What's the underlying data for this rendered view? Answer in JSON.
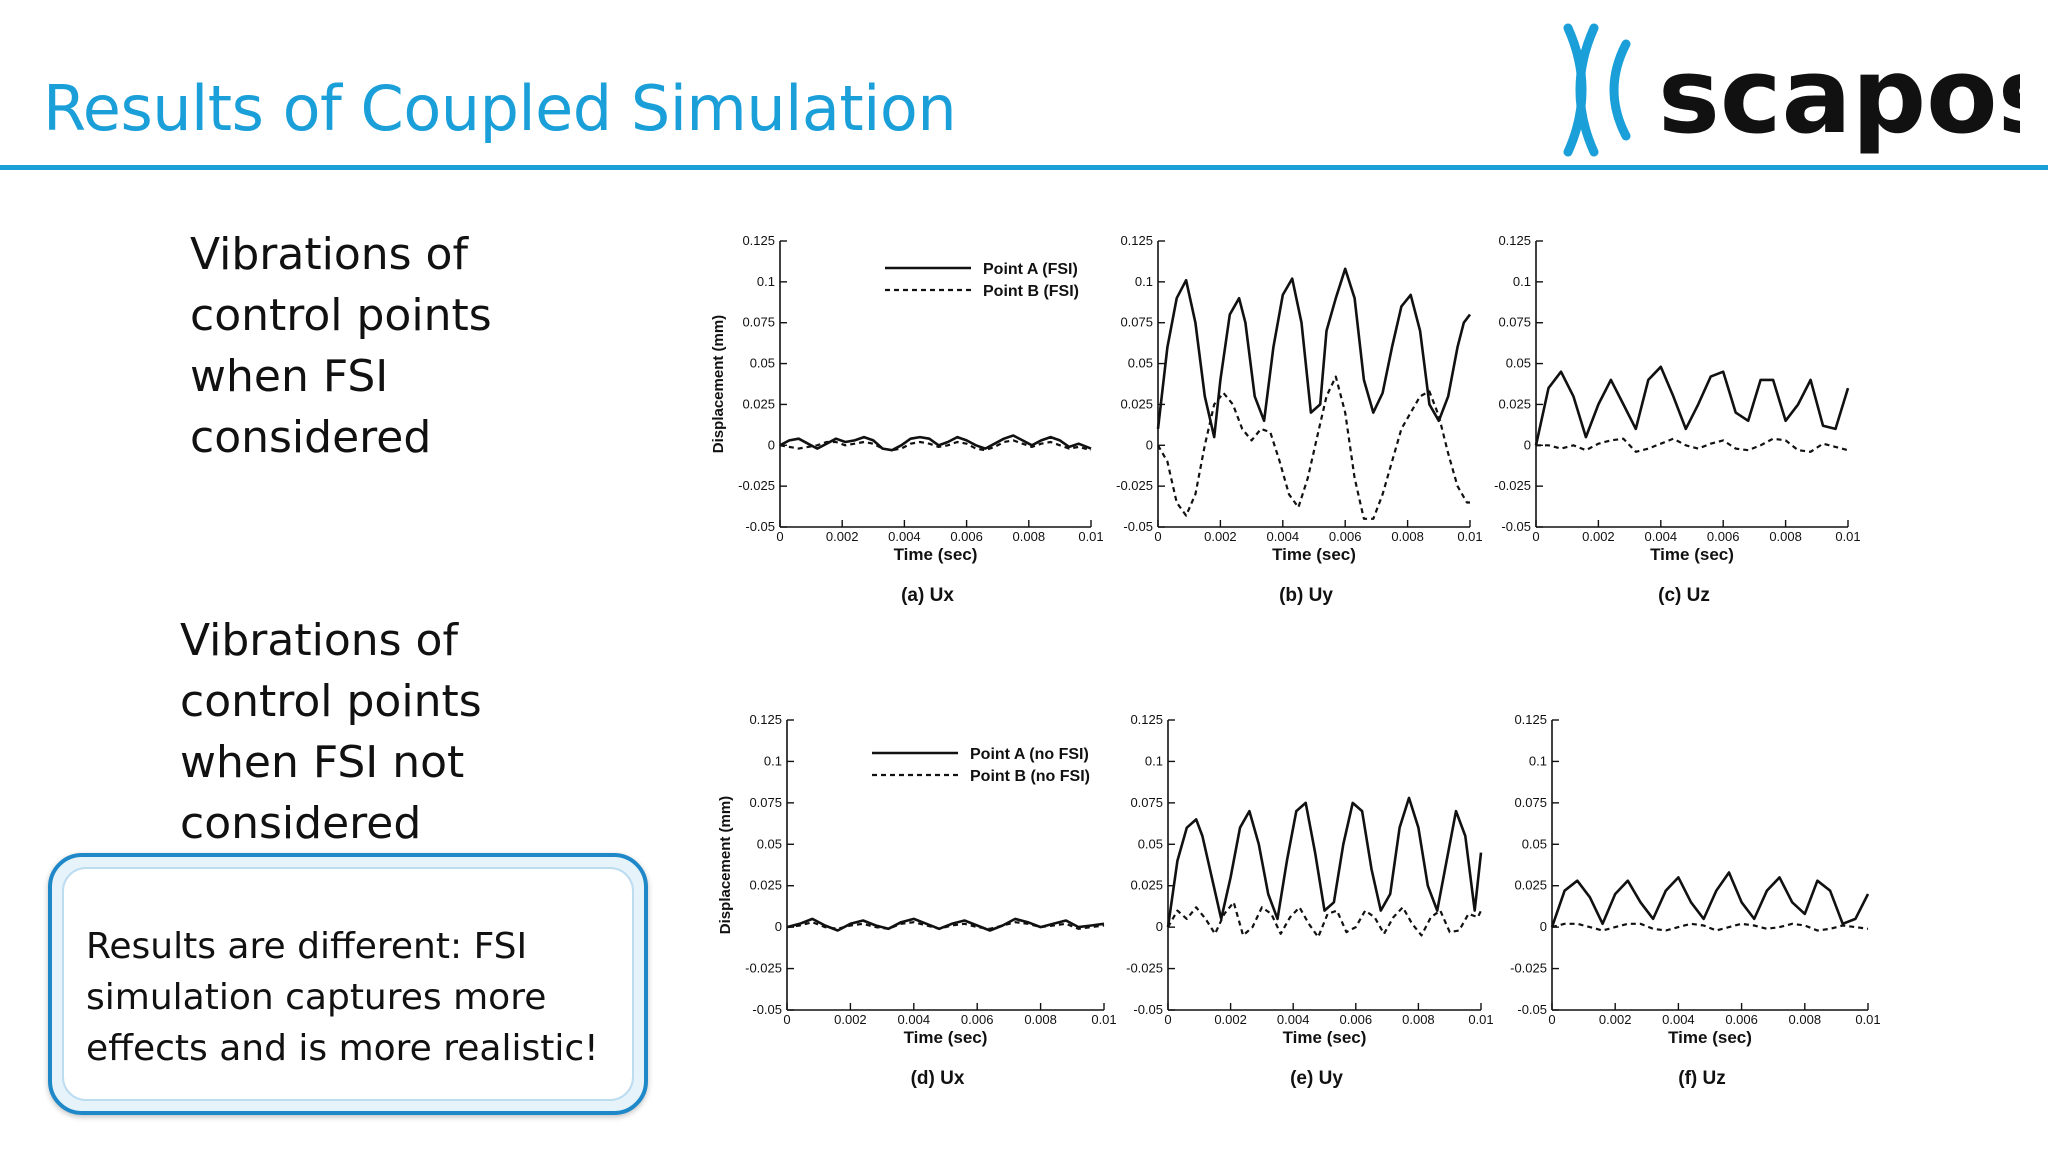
{
  "slide": {
    "title": "Results of Coupled Simulation",
    "logo_text": "scapos",
    "brand_color": "#1a9fd9"
  },
  "sections": {
    "fsi_lines": [
      "Vibrations of",
      "control points",
      "when FSI",
      "considered"
    ],
    "nofsi_lines": [
      "Vibrations of",
      "control points",
      "when FSI not",
      "considered"
    ]
  },
  "callout": {
    "lines": [
      "Results are different: FSI",
      "simulation captures more",
      "effects and is more realistic!"
    ]
  },
  "chart_data": [
    {
      "type": "line",
      "caption": "(a) Ux",
      "xlabel": "Time (sec)",
      "ylabel": "Displacement (mm)",
      "xlim": [
        0,
        0.01
      ],
      "ylim": [
        -0.05,
        0.125
      ],
      "xticks": [
        "0",
        "0.002",
        "0.004",
        "0.006",
        "0.008",
        "0.01"
      ],
      "yticks": [
        "0.125",
        "0.1",
        "0.075",
        "0.05",
        "0.025",
        "0",
        "-0.025",
        "-0.05"
      ],
      "legend": [
        "Point A (FSI)",
        "Point B (FSI)"
      ],
      "series": [
        {
          "name": "Point A (FSI)",
          "style": "solid",
          "x": [
            0,
            0.0003,
            0.0006,
            0.0009,
            0.0012,
            0.0015,
            0.0018,
            0.0021,
            0.0024,
            0.0027,
            0.003,
            0.0033,
            0.0036,
            0.0039,
            0.0042,
            0.0045,
            0.0048,
            0.0051,
            0.0054,
            0.0057,
            0.006,
            0.0063,
            0.0066,
            0.0069,
            0.0072,
            0.0075,
            0.0078,
            0.0081,
            0.0084,
            0.0087,
            0.009,
            0.0093,
            0.0096,
            0.01
          ],
          "y": [
            0,
            0.003,
            0.004,
            0.001,
            -0.002,
            0.001,
            0.004,
            0.002,
            0.003,
            0.005,
            0.003,
            -0.002,
            -0.003,
            0,
            0.004,
            0.005,
            0.004,
            0,
            0.002,
            0.005,
            0.003,
            0,
            -0.002,
            0.001,
            0.004,
            0.006,
            0.003,
            0,
            0.003,
            0.005,
            0.003,
            -0.001,
            0.001,
            -0.002
          ]
        },
        {
          "name": "Point B (FSI)",
          "style": "dashed",
          "x": [
            0,
            0.0003,
            0.0006,
            0.0009,
            0.0012,
            0.0015,
            0.0018,
            0.0021,
            0.0024,
            0.0027,
            0.003,
            0.0033,
            0.0036,
            0.0039,
            0.0042,
            0.0045,
            0.0048,
            0.0051,
            0.0054,
            0.0057,
            0.006,
            0.0063,
            0.0066,
            0.0069,
            0.0072,
            0.0075,
            0.0078,
            0.0081,
            0.0084,
            0.0087,
            0.009,
            0.0093,
            0.0096,
            0.01
          ],
          "y": [
            0,
            -0.001,
            -0.002,
            -0.001,
            0,
            0.002,
            0.002,
            0,
            0.001,
            0.002,
            0.001,
            -0.002,
            -0.003,
            -0.002,
            0.001,
            0.002,
            0.001,
            -0.001,
            0,
            0.002,
            0.001,
            -0.002,
            -0.003,
            -0.001,
            0.002,
            0.003,
            0.001,
            -0.001,
            0.001,
            0.002,
            0,
            -0.002,
            -0.001,
            -0.003
          ]
        }
      ]
    },
    {
      "type": "line",
      "caption": "(b) Uy",
      "xlabel": "Time (sec)",
      "ylabel": "",
      "xlim": [
        0,
        0.01
      ],
      "ylim": [
        -0.05,
        0.125
      ],
      "xticks": [
        "0",
        "0.002",
        "0.004",
        "0.006",
        "0.008",
        "0.01"
      ],
      "yticks": [
        "0.125",
        "0.1",
        "0.075",
        "0.05",
        "0.025",
        "0",
        "-0.025",
        "-0.05"
      ],
      "legend": [],
      "series": [
        {
          "name": "Point A (FSI)",
          "style": "solid",
          "x": [
            0,
            0.0003,
            0.0006,
            0.0009,
            0.0012,
            0.0015,
            0.0018,
            0.002,
            0.0023,
            0.0026,
            0.0028,
            0.0031,
            0.0034,
            0.0037,
            0.004,
            0.0043,
            0.0046,
            0.0049,
            0.0052,
            0.0054,
            0.0057,
            0.006,
            0.0063,
            0.0066,
            0.0069,
            0.0072,
            0.0075,
            0.0078,
            0.0081,
            0.0084,
            0.0087,
            0.009,
            0.0093,
            0.0096,
            0.0098,
            0.01
          ],
          "y": [
            0.01,
            0.06,
            0.09,
            0.101,
            0.075,
            0.03,
            0.005,
            0.04,
            0.08,
            0.09,
            0.075,
            0.03,
            0.015,
            0.06,
            0.092,
            0.102,
            0.075,
            0.02,
            0.025,
            0.07,
            0.09,
            0.108,
            0.09,
            0.04,
            0.02,
            0.032,
            0.06,
            0.085,
            0.092,
            0.07,
            0.025,
            0.015,
            0.03,
            0.06,
            0.075,
            0.08
          ]
        },
        {
          "name": "Point B (FSI)",
          "style": "dashed",
          "x": [
            0,
            0.0003,
            0.0006,
            0.0009,
            0.0012,
            0.0015,
            0.0018,
            0.0021,
            0.0024,
            0.0027,
            0.003,
            0.0033,
            0.0036,
            0.0039,
            0.0042,
            0.0045,
            0.0048,
            0.0051,
            0.0054,
            0.0057,
            0.006,
            0.0063,
            0.0066,
            0.0069,
            0.0072,
            0.0075,
            0.0078,
            0.0081,
            0.0084,
            0.0087,
            0.009,
            0.0093,
            0.0096,
            0.0099,
            0.01
          ],
          "y": [
            0,
            -0.01,
            -0.035,
            -0.043,
            -0.03,
            0,
            0.025,
            0.032,
            0.025,
            0.01,
            0.003,
            0.01,
            0.008,
            -0.01,
            -0.03,
            -0.038,
            -0.02,
            0.005,
            0.03,
            0.042,
            0.02,
            -0.02,
            -0.045,
            -0.045,
            -0.03,
            -0.01,
            0.01,
            0.02,
            0.03,
            0.033,
            0.018,
            -0.005,
            -0.025,
            -0.035,
            -0.035
          ]
        }
      ]
    },
    {
      "type": "line",
      "caption": "(c) Uz",
      "xlabel": "Time (sec)",
      "ylabel": "",
      "xlim": [
        0,
        0.01
      ],
      "ylim": [
        -0.05,
        0.125
      ],
      "xticks": [
        "0",
        "0.002",
        "0.004",
        "0.006",
        "0.008",
        "0.01"
      ],
      "yticks": [
        "0.125",
        "0.1",
        "0.075",
        "0.05",
        "0.025",
        "0",
        "-0.025",
        "-0.05"
      ],
      "legend": [],
      "series": [
        {
          "name": "Point A (FSI)",
          "style": "solid",
          "x": [
            0,
            0.0004,
            0.0008,
            0.0012,
            0.0016,
            0.002,
            0.0024,
            0.0028,
            0.0032,
            0.0036,
            0.004,
            0.0044,
            0.0048,
            0.0052,
            0.0056,
            0.006,
            0.0064,
            0.0068,
            0.0072,
            0.0076,
            0.008,
            0.0084,
            0.0088,
            0.0092,
            0.0096,
            0.01
          ],
          "y": [
            0,
            0.035,
            0.045,
            0.03,
            0.005,
            0.025,
            0.04,
            0.025,
            0.01,
            0.04,
            0.048,
            0.03,
            0.01,
            0.025,
            0.042,
            0.045,
            0.02,
            0.015,
            0.04,
            0.04,
            0.015,
            0.025,
            0.04,
            0.012,
            0.01,
            0.035
          ]
        },
        {
          "name": "Point B (FSI)",
          "style": "dashed",
          "x": [
            0,
            0.0004,
            0.0008,
            0.0012,
            0.0016,
            0.002,
            0.0024,
            0.0028,
            0.0032,
            0.0036,
            0.004,
            0.0044,
            0.0048,
            0.0052,
            0.0056,
            0.006,
            0.0064,
            0.0068,
            0.0072,
            0.0076,
            0.008,
            0.0084,
            0.0088,
            0.0092,
            0.0096,
            0.01
          ],
          "y": [
            0,
            0,
            -0.002,
            0,
            -0.003,
            0.001,
            0.003,
            0.004,
            -0.004,
            -0.002,
            0.001,
            0.004,
            0,
            -0.002,
            0.001,
            0.003,
            -0.002,
            -0.003,
            0,
            0.004,
            0.003,
            -0.003,
            -0.004,
            0.001,
            -0.001,
            -0.003
          ]
        }
      ]
    },
    {
      "type": "line",
      "caption": "(d) Ux",
      "xlabel": "Time (sec)",
      "ylabel": "Displacement (mm)",
      "xlim": [
        0,
        0.01
      ],
      "ylim": [
        -0.05,
        0.125
      ],
      "xticks": [
        "0",
        "0.002",
        "0.004",
        "0.006",
        "0.008",
        "0.01"
      ],
      "yticks": [
        "0.125",
        "0.1",
        "0.075",
        "0.05",
        "0.025",
        "0",
        "-0.025",
        "-0.05"
      ],
      "legend": [
        "Point A (no FSI)",
        "Point B (no FSI)"
      ],
      "series": [
        {
          "name": "Point A (no FSI)",
          "style": "solid",
          "x": [
            0,
            0.0004,
            0.0008,
            0.0012,
            0.0016,
            0.002,
            0.0024,
            0.0028,
            0.0032,
            0.0036,
            0.004,
            0.0044,
            0.0048,
            0.0052,
            0.0056,
            0.006,
            0.0064,
            0.0068,
            0.0072,
            0.0076,
            0.008,
            0.0084,
            0.0088,
            0.0092,
            0.0096,
            0.01
          ],
          "y": [
            0,
            0.002,
            0.005,
            0.001,
            -0.002,
            0.002,
            0.004,
            0.001,
            -0.001,
            0.003,
            0.005,
            0.002,
            -0.001,
            0.002,
            0.004,
            0.001,
            -0.002,
            0.001,
            0.005,
            0.003,
            0,
            0.002,
            0.004,
            0,
            0.001,
            0.002
          ]
        },
        {
          "name": "Point B (no FSI)",
          "style": "dashed",
          "x": [
            0,
            0.0004,
            0.0008,
            0.0012,
            0.0016,
            0.002,
            0.0024,
            0.0028,
            0.0032,
            0.0036,
            0.004,
            0.0044,
            0.0048,
            0.0052,
            0.0056,
            0.006,
            0.0064,
            0.0068,
            0.0072,
            0.0076,
            0.008,
            0.0084,
            0.0088,
            0.0092,
            0.0096,
            0.01
          ],
          "y": [
            0,
            0.001,
            0.003,
            0,
            -0.001,
            0.001,
            0.002,
            0,
            -0.001,
            0.002,
            0.003,
            0.001,
            -0.001,
            0.001,
            0.002,
            0,
            -0.001,
            0.001,
            0.003,
            0.002,
            0,
            0.001,
            0.002,
            -0.001,
            0,
            0.001
          ]
        }
      ]
    },
    {
      "type": "line",
      "caption": "(e) Uy",
      "xlabel": "Time (sec)",
      "ylabel": "",
      "xlim": [
        0,
        0.01
      ],
      "ylim": [
        -0.05,
        0.125
      ],
      "xticks": [
        "0",
        "0.002",
        "0.004",
        "0.006",
        "0.008",
        "0.01"
      ],
      "yticks": [
        "0.125",
        "0.1",
        "0.075",
        "0.05",
        "0.025",
        "0",
        "-0.025",
        "-0.05"
      ],
      "legend": [],
      "series": [
        {
          "name": "Point A (no FSI)",
          "style": "solid",
          "x": [
            0,
            0.0003,
            0.0006,
            0.0009,
            0.0011,
            0.0014,
            0.0017,
            0.002,
            0.0023,
            0.0026,
            0.0029,
            0.0032,
            0.0035,
            0.0038,
            0.0041,
            0.0044,
            0.0047,
            0.005,
            0.0053,
            0.0056,
            0.0059,
            0.0062,
            0.0065,
            0.0068,
            0.0071,
            0.0074,
            0.0077,
            0.008,
            0.0083,
            0.0086,
            0.0089,
            0.0092,
            0.0095,
            0.0098,
            0.01
          ],
          "y": [
            0,
            0.04,
            0.06,
            0.065,
            0.055,
            0.03,
            0.005,
            0.03,
            0.06,
            0.07,
            0.05,
            0.02,
            0.005,
            0.04,
            0.07,
            0.075,
            0.045,
            0.01,
            0.015,
            0.05,
            0.075,
            0.07,
            0.035,
            0.01,
            0.02,
            0.06,
            0.078,
            0.06,
            0.025,
            0.01,
            0.04,
            0.07,
            0.055,
            0.01,
            0.045
          ]
        },
        {
          "name": "Point B (no FSI)",
          "style": "dashed",
          "x": [
            0,
            0.0003,
            0.0006,
            0.0009,
            0.0012,
            0.0015,
            0.0018,
            0.0021,
            0.0024,
            0.0027,
            0.003,
            0.0033,
            0.0036,
            0.0039,
            0.0042,
            0.0045,
            0.0048,
            0.0051,
            0.0054,
            0.0057,
            0.006,
            0.0063,
            0.0066,
            0.0069,
            0.0072,
            0.0075,
            0.0078,
            0.0081,
            0.0084,
            0.0087,
            0.009,
            0.0093,
            0.0096,
            0.0099,
            0.01
          ],
          "y": [
            0,
            0.01,
            0.005,
            0.012,
            0.005,
            -0.004,
            0.008,
            0.015,
            -0.005,
            0,
            0.012,
            0.008,
            -0.004,
            0.006,
            0.012,
            0.002,
            -0.006,
            0.008,
            0.01,
            -0.003,
            0,
            0.01,
            0.006,
            -0.004,
            0.006,
            0.012,
            0.002,
            -0.005,
            0.006,
            0.01,
            -0.003,
            -0.002,
            0.008,
            0.006,
            0.01
          ]
        }
      ]
    },
    {
      "type": "line",
      "caption": "(f) Uz",
      "xlabel": "Time (sec)",
      "ylabel": "",
      "xlim": [
        0,
        0.01
      ],
      "ylim": [
        -0.05,
        0.125
      ],
      "xticks": [
        "0",
        "0.002",
        "0.004",
        "0.006",
        "0.008",
        "0.01"
      ],
      "yticks": [
        "0.125",
        "0.1",
        "0.075",
        "0.05",
        "0.025",
        "0",
        "-0.025",
        "-0.05"
      ],
      "legend": [],
      "series": [
        {
          "name": "Point A (no FSI)",
          "style": "solid",
          "x": [
            0,
            0.0004,
            0.0008,
            0.0012,
            0.0016,
            0.002,
            0.0024,
            0.0028,
            0.0032,
            0.0036,
            0.004,
            0.0044,
            0.0048,
            0.0052,
            0.0056,
            0.006,
            0.0064,
            0.0068,
            0.0072,
            0.0076,
            0.008,
            0.0084,
            0.0088,
            0.0092,
            0.0096,
            0.01
          ],
          "y": [
            0,
            0.022,
            0.028,
            0.018,
            0.002,
            0.02,
            0.028,
            0.015,
            0.005,
            0.022,
            0.03,
            0.015,
            0.005,
            0.022,
            0.033,
            0.015,
            0.005,
            0.022,
            0.03,
            0.015,
            0.008,
            0.028,
            0.022,
            0.002,
            0.005,
            0.02
          ]
        },
        {
          "name": "Point B (no FSI)",
          "style": "dashed",
          "x": [
            0,
            0.0004,
            0.0008,
            0.0012,
            0.0016,
            0.002,
            0.0024,
            0.0028,
            0.0032,
            0.0036,
            0.004,
            0.0044,
            0.0048,
            0.0052,
            0.0056,
            0.006,
            0.0064,
            0.0068,
            0.0072,
            0.0076,
            0.008,
            0.0084,
            0.0088,
            0.0092,
            0.0096,
            0.01
          ],
          "y": [
            0,
            0.002,
            0.002,
            0,
            -0.002,
            0,
            0.002,
            0.002,
            -0.001,
            -0.002,
            0,
            0.002,
            0.001,
            -0.002,
            0,
            0.002,
            0.001,
            -0.001,
            0,
            0.002,
            0.001,
            -0.002,
            -0.001,
            0.001,
            0,
            -0.001
          ]
        }
      ]
    }
  ]
}
